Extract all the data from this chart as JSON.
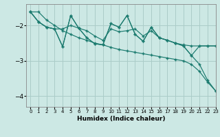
{
  "title": "",
  "xlabel": "Humidex (Indice chaleur)",
  "ylabel": "",
  "bg_color": "#cce8e4",
  "line_color": "#1a7a6e",
  "grid_color": "#aaccc8",
  "xlim": [
    -0.5,
    23
  ],
  "ylim": [
    -4.3,
    -1.4
  ],
  "yticks": [
    -4,
    -3,
    -2
  ],
  "xticks": [
    0,
    1,
    2,
    3,
    4,
    5,
    6,
    7,
    8,
    9,
    10,
    11,
    12,
    13,
    14,
    15,
    16,
    17,
    18,
    19,
    20,
    21,
    22,
    23
  ],
  "series": [
    {
      "x": [
        0,
        1,
        2,
        3,
        4,
        5,
        6,
        7,
        8,
        9,
        10,
        11,
        12,
        13,
        14,
        15,
        16,
        17,
        18,
        19,
        20,
        21,
        22,
        23
      ],
      "y": [
        -1.62,
        -1.62,
        -1.85,
        -2.0,
        -2.15,
        -2.25,
        -2.35,
        -2.42,
        -2.5,
        -2.55,
        -2.62,
        -2.68,
        -2.72,
        -2.76,
        -2.8,
        -2.84,
        -2.88,
        -2.92,
        -2.96,
        -3.0,
        -3.1,
        -3.3,
        -3.6,
        -3.85
      ]
    },
    {
      "x": [
        0,
        1,
        2,
        3,
        4,
        5,
        6,
        7,
        8,
        9,
        10,
        11,
        12,
        13,
        14,
        15,
        16,
        17,
        18,
        19,
        20,
        21,
        22,
        23
      ],
      "y": [
        -1.62,
        -1.9,
        -2.05,
        -2.1,
        -2.6,
        -1.72,
        -2.08,
        -2.35,
        -2.52,
        -2.55,
        -1.95,
        -2.05,
        -1.72,
        -2.25,
        -2.45,
        -2.05,
        -2.35,
        -2.42,
        -2.5,
        -2.55,
        -2.58,
        -2.58,
        -2.58,
        -2.58
      ]
    },
    {
      "x": [
        0,
        1,
        2,
        3,
        4,
        5,
        6,
        7,
        8,
        9,
        10,
        11,
        12,
        13,
        14,
        15,
        16,
        17,
        18,
        19,
        20,
        21,
        22,
        23
      ],
      "y": [
        -1.62,
        -1.9,
        -2.05,
        -2.1,
        -2.6,
        -1.72,
        -2.08,
        -2.35,
        -2.52,
        -2.55,
        -1.95,
        -2.05,
        -1.72,
        -2.25,
        -2.45,
        -2.05,
        -2.35,
        -2.42,
        -2.5,
        -2.58,
        -2.85,
        -3.1,
        -3.55,
        -3.85
      ]
    },
    {
      "x": [
        0,
        1,
        2,
        3,
        4,
        5,
        6,
        7,
        8,
        9,
        10,
        11,
        12,
        13,
        14,
        15,
        16,
        17,
        18,
        19,
        20,
        21,
        22,
        23
      ],
      "y": [
        -1.62,
        -1.9,
        -2.05,
        -2.1,
        -2.1,
        -2.0,
        -2.08,
        -2.15,
        -2.3,
        -2.42,
        -2.1,
        -2.18,
        -2.15,
        -2.1,
        -2.3,
        -2.15,
        -2.35,
        -2.42,
        -2.5,
        -2.58,
        -2.85,
        -2.58,
        -2.58,
        -2.58
      ]
    }
  ]
}
